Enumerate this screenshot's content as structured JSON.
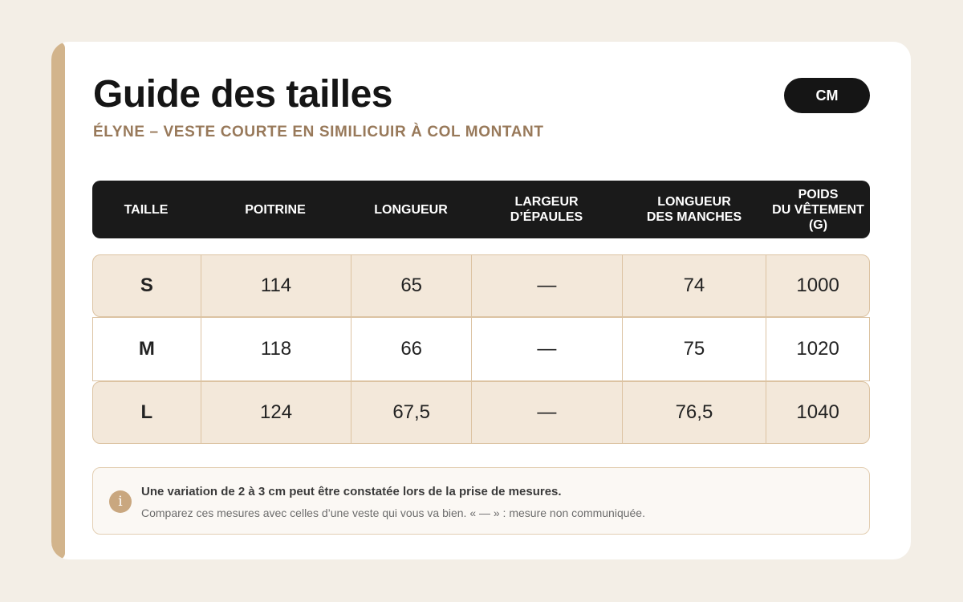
{
  "header": {
    "title": "Guide des tailles",
    "subtitle": "ÉLYNE – VESTE COURTE EN SIMILICUIR À COL MONTANT",
    "unit": "CM"
  },
  "table": {
    "columns": [
      "TAILLE",
      "POITRINE",
      "LONGUEUR",
      "LARGEUR\nD’ÉPAULES",
      "LONGUEUR\nDES MANCHES",
      "POIDS\nDU VÊTEMENT (G)"
    ],
    "rows": [
      [
        "S",
        "114",
        "65",
        "—",
        "74",
        "1000"
      ],
      [
        "M",
        "118",
        "66",
        "—",
        "75",
        "1020"
      ],
      [
        "L",
        "124",
        "67,5",
        "—",
        "76,5",
        "1040"
      ]
    ]
  },
  "note": {
    "icon": "info-icon",
    "strong": "Une variation de 2 à 3 cm peut être constatée lors de la prise de mesures.",
    "text": "Comparez ces mesures avec celles d’une veste qui vous va bien. « — » : mesure non communiquée."
  },
  "colors": {
    "accent": "#d2b48c",
    "subtitle": "#98795a",
    "header_bg": "#1a1a1a",
    "row_shaded": "#f3e8da"
  }
}
